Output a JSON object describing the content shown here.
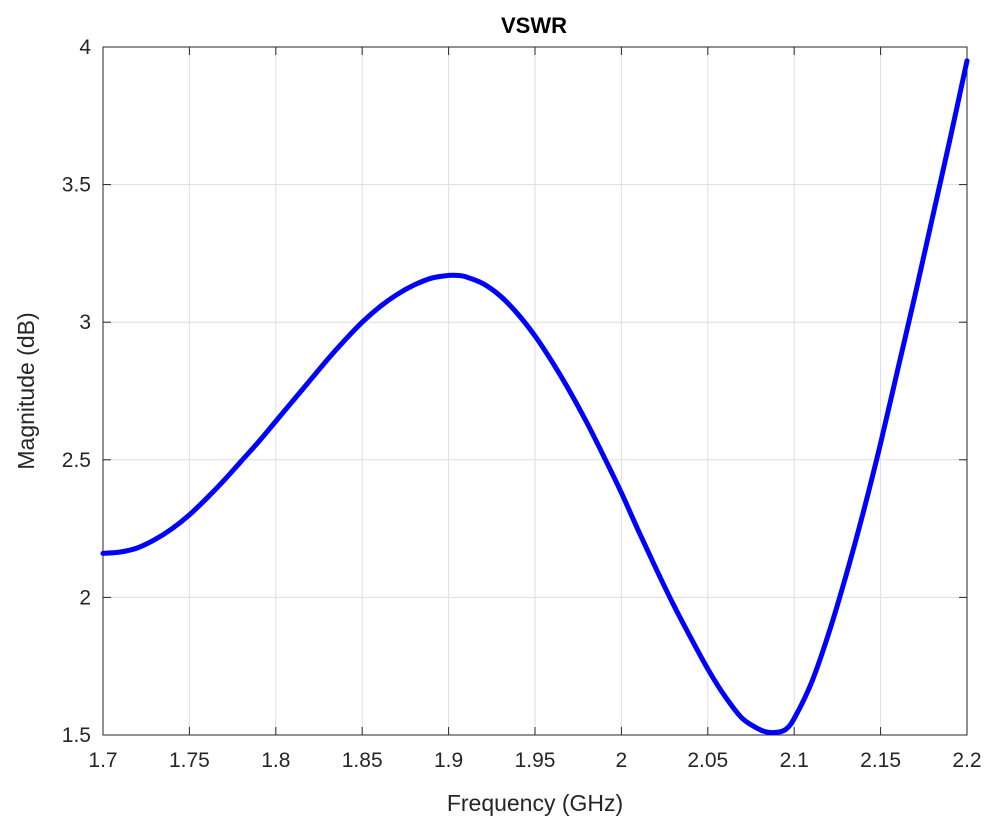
{
  "chart_data": {
    "type": "line",
    "title": "VSWR",
    "xlabel": "Frequency (GHz)",
    "ylabel": "Magnitude (dB)",
    "xlim": [
      1.7,
      2.2
    ],
    "ylim": [
      1.5,
      4
    ],
    "xticks": [
      "1.7",
      "1.75",
      "1.8",
      "1.85",
      "1.9",
      "1.95",
      "2",
      "2.05",
      "2.1",
      "2.15",
      "2.2"
    ],
    "yticks": [
      "1.5",
      "2",
      "2.5",
      "3",
      "3.5",
      "4"
    ],
    "grid": true,
    "series": [
      {
        "color": "#0000ff",
        "x": [
          1.7,
          1.71,
          1.72,
          1.73,
          1.74,
          1.75,
          1.76,
          1.77,
          1.78,
          1.79,
          1.8,
          1.81,
          1.82,
          1.83,
          1.84,
          1.85,
          1.86,
          1.87,
          1.88,
          1.89,
          1.9,
          1.905,
          1.91,
          1.92,
          1.93,
          1.94,
          1.95,
          1.96,
          1.97,
          1.98,
          1.99,
          2.0,
          2.01,
          2.02,
          2.03,
          2.04,
          2.05,
          2.06,
          2.07,
          2.08,
          2.085,
          2.09,
          2.095,
          2.1,
          2.11,
          2.12,
          2.13,
          2.14,
          2.15,
          2.16,
          2.17,
          2.18,
          2.19,
          2.2
        ],
        "y": [
          2.16,
          2.165,
          2.18,
          2.21,
          2.25,
          2.3,
          2.36,
          2.425,
          2.495,
          2.565,
          2.64,
          2.715,
          2.79,
          2.865,
          2.935,
          3.0,
          3.055,
          3.1,
          3.135,
          3.16,
          3.17,
          3.17,
          3.165,
          3.14,
          3.095,
          3.03,
          2.95,
          2.855,
          2.75,
          2.635,
          2.51,
          2.38,
          2.24,
          2.105,
          1.975,
          1.855,
          1.74,
          1.64,
          1.56,
          1.52,
          1.51,
          1.51,
          1.52,
          1.56,
          1.69,
          1.87,
          2.08,
          2.31,
          2.56,
          2.83,
          3.1,
          3.38,
          3.66,
          3.95
        ]
      }
    ]
  }
}
